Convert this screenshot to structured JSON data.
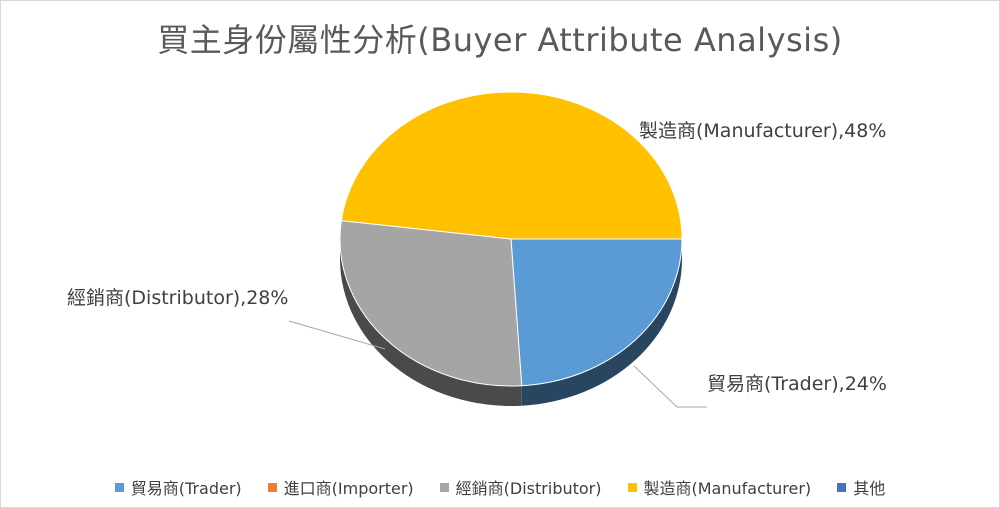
{
  "chart_data": {
    "type": "pie",
    "title": "買主身份屬性分析(Buyer Attribute Analysis)",
    "categories": [
      "貿易商(Trader)",
      "進口商(Importer)",
      "經銷商(Distributor)",
      "製造商(Manufacturer)",
      "其他"
    ],
    "values": [
      24,
      0,
      28,
      48,
      0
    ],
    "colors": [
      "#5b9bd5",
      "#ed7d31",
      "#a5a5a5",
      "#ffc000",
      "#4472c4"
    ],
    "data_labels": [
      {
        "category": "貿易商(Trader)",
        "text": "貿易商(Trader),24%"
      },
      {
        "category": "經銷商(Distributor)",
        "text": "經銷商(Distributor),28%"
      },
      {
        "category": "製造商(Manufacturer)",
        "text": "製造商(Manufacturer),48%"
      }
    ],
    "legend_position": "bottom",
    "style": "3d-pie"
  }
}
